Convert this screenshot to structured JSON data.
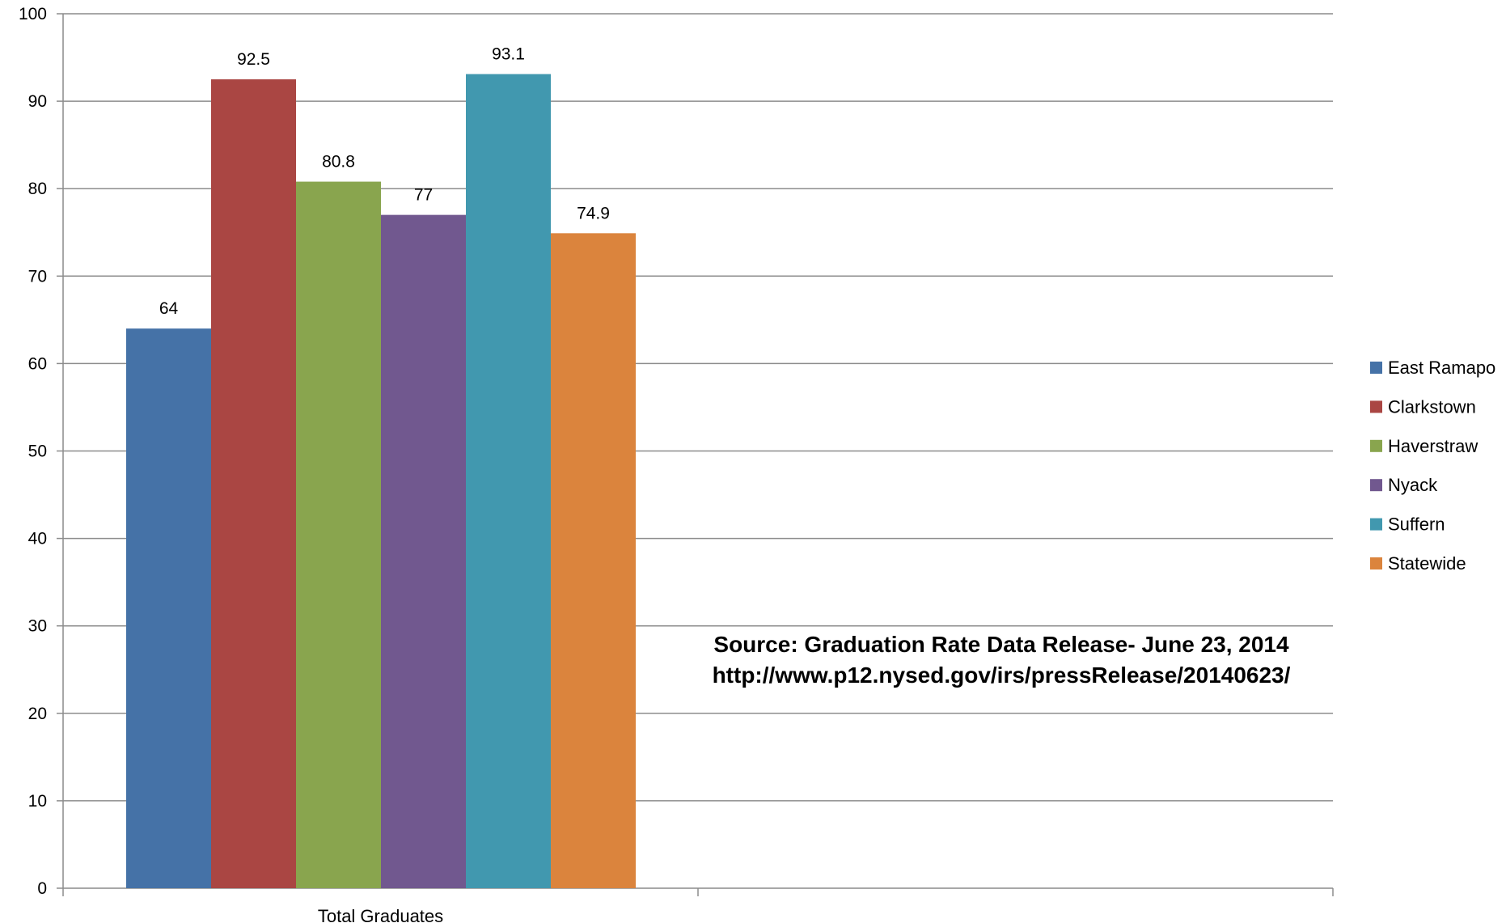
{
  "chart_data": {
    "type": "bar",
    "categories": [
      "Total Graduates"
    ],
    "series": [
      {
        "name": "East Ramapo",
        "values": [
          64
        ],
        "color": "#4572a7",
        "label": "64"
      },
      {
        "name": "Clarkstown",
        "values": [
          92.5
        ],
        "color": "#aa4643",
        "label": "92.5"
      },
      {
        "name": "Haverstraw",
        "values": [
          80.8
        ],
        "color": "#89a54e",
        "label": "80.8"
      },
      {
        "name": "Nyack",
        "values": [
          77
        ],
        "color": "#71588f",
        "label": "77"
      },
      {
        "name": "Suffern",
        "values": [
          93.1
        ],
        "color": "#4198af",
        "label": "93.1"
      },
      {
        "name": "Statewide",
        "values": [
          74.9
        ],
        "color": "#db843d",
        "label": "74.9"
      }
    ],
    "ylim": [
      0,
      100
    ],
    "yticks": [
      "0",
      "10",
      "20",
      "30",
      "40",
      "50",
      "60",
      "70",
      "80",
      "90",
      "100"
    ],
    "grid": true,
    "legend_position": "right",
    "annotation": {
      "line1": "Source: Graduation Rate Data  Release- June 23, 2014",
      "line2": "http://www.p12.nysed.gov/irs/pressRelease/20140623/"
    }
  }
}
